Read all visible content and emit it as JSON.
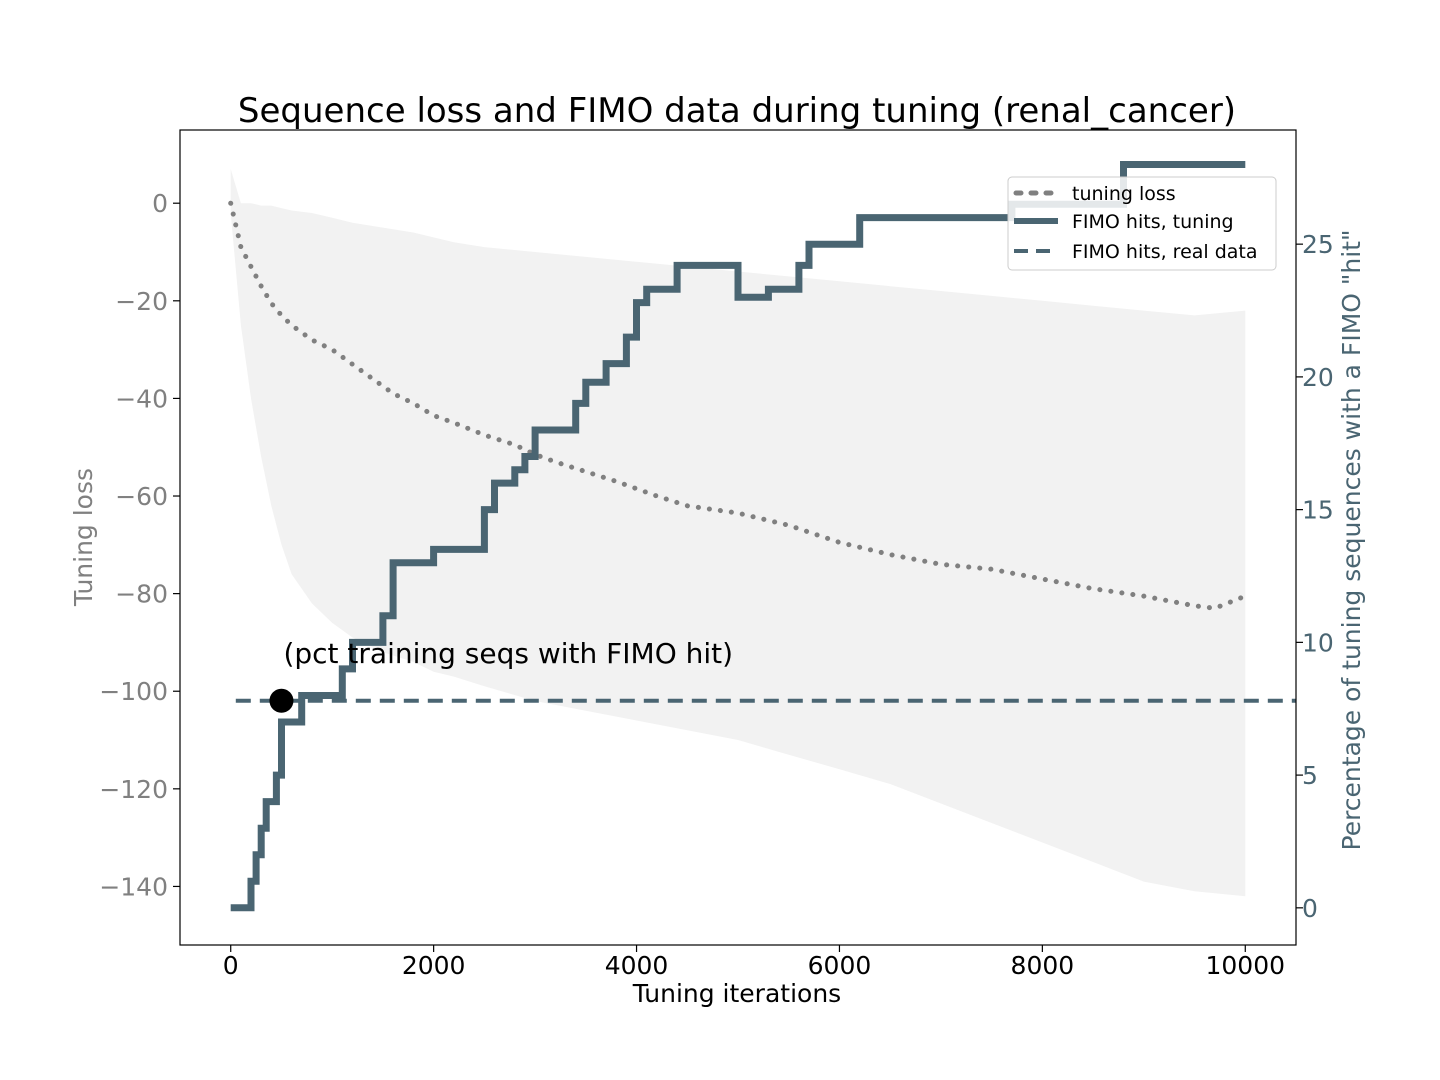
{
  "chart_data": {
    "type": "line",
    "title": "Sequence loss and FIMO data during tuning (renal_cancer)",
    "xlabel": "Tuning iterations",
    "ylabel_left": "Tuning loss",
    "ylabel_right": "Percentage of tuning sequences with a FIMO \"hit\"",
    "xlim": [
      -500,
      10500
    ],
    "ylim_left": [
      -152,
      15
    ],
    "ylim_right": [
      -1.4,
      29.3
    ],
    "x_ticks": [
      0,
      2000,
      4000,
      6000,
      8000,
      10000
    ],
    "x_tick_labels": [
      "0",
      "2000",
      "4000",
      "6000",
      "8000",
      "10000"
    ],
    "y_left_ticks": [
      0,
      -20,
      -40,
      -60,
      -80,
      -100,
      -120,
      -140
    ],
    "y_left_tick_labels": [
      "0",
      "−20",
      "−40",
      "−60",
      "−80",
      "−100",
      "−120",
      "−140"
    ],
    "y_right_ticks": [
      0,
      5,
      10,
      15,
      20,
      25
    ],
    "y_right_tick_labels": [
      "0",
      "5",
      "10",
      "15",
      "20",
      "25"
    ],
    "grid": false,
    "legend": {
      "placement": "top-right",
      "entries": [
        "tuning loss",
        "FIMO hits, tuning",
        "FIMO hits, real data"
      ]
    },
    "annotation": {
      "text": "(pct training seqs with FIMO hit)",
      "x": 500,
      "y_right": 7.8
    },
    "colors": {
      "loss": "#808080",
      "fimo": "#4a6572",
      "band": "#f2f2f2",
      "left_axis_text": "#808080",
      "right_axis_text": "#4a6572"
    },
    "series": [
      {
        "name": "tuning loss",
        "axis": "left",
        "style": "dotted",
        "x": [
          0,
          100,
          200,
          300,
          400,
          500,
          600,
          700,
          800,
          1000,
          1200,
          1400,
          1600,
          1800,
          2000,
          2200,
          2500,
          2800,
          3000,
          3200,
          3500,
          3800,
          4000,
          4200,
          4500,
          5000,
          5500,
          6000,
          6500,
          7000,
          7500,
          8000,
          8500,
          9000,
          9500,
          9700,
          10000
        ],
        "y": [
          0,
          -9,
          -13,
          -17,
          -20.5,
          -23,
          -25,
          -26.5,
          -28,
          -30,
          -33,
          -36,
          -39,
          -41,
          -43.5,
          -45,
          -47.5,
          -49.5,
          -51.5,
          -53,
          -55,
          -57,
          -58.5,
          -60,
          -62,
          -63.5,
          -66,
          -69.5,
          -72,
          -74,
          -75,
          -77,
          -79,
          -80.5,
          -82.5,
          -83,
          -80.5
        ]
      },
      {
        "name": "tuning loss band",
        "axis": "left",
        "style": "band",
        "x": [
          0,
          100,
          200,
          300,
          400,
          500,
          600,
          800,
          1000,
          1200,
          1500,
          1800,
          2000,
          2200,
          2500,
          3000,
          3500,
          4000,
          4500,
          5000,
          5500,
          6000,
          6500,
          7000,
          7500,
          8000,
          8500,
          9000,
          9500,
          10000
        ],
        "lower": [
          -2,
          -25,
          -40,
          -52,
          -62,
          -70,
          -76,
          -82,
          -86,
          -89,
          -92,
          -94,
          -96,
          -97,
          -99,
          -102,
          -104,
          -106,
          -108,
          -110,
          -113,
          -116,
          -119,
          -123,
          -127,
          -131,
          -135,
          -139,
          -141,
          -142
        ],
        "upper": [
          7,
          0,
          0,
          -0.5,
          -0.5,
          -1,
          -1.5,
          -2,
          -3,
          -4,
          -5,
          -6,
          -7,
          -8,
          -9,
          -10,
          -11,
          -12,
          -13,
          -14,
          -15,
          -16,
          -17,
          -18,
          -19,
          -20,
          -21,
          -22,
          -23,
          -22
        ]
      },
      {
        "name": "FIMO hits, tuning",
        "axis": "right",
        "style": "steps",
        "x": [
          0,
          200,
          250,
          300,
          350,
          450,
          500,
          700,
          1000,
          1100,
          1200,
          1500,
          1600,
          2000,
          2500,
          2600,
          2800,
          2900,
          3000,
          3400,
          3500,
          3700,
          3900,
          4000,
          4100,
          4400,
          5000,
          5300,
          5600,
          5700,
          6200,
          7700,
          8800,
          10000
        ],
        "y": [
          0,
          1,
          2,
          3,
          4,
          5,
          7,
          8,
          8,
          9,
          10,
          11,
          13,
          13.5,
          15,
          16,
          16.5,
          17,
          18,
          19,
          19.8,
          20.5,
          21.5,
          22.8,
          23.3,
          24.2,
          23,
          23.3,
          24.2,
          25,
          26,
          26.5,
          28,
          28
        ]
      },
      {
        "name": "FIMO hits, real data",
        "axis": "right",
        "style": "dashed",
        "x": [
          50,
          10500
        ],
        "y": [
          7.8,
          7.8
        ]
      }
    ]
  }
}
